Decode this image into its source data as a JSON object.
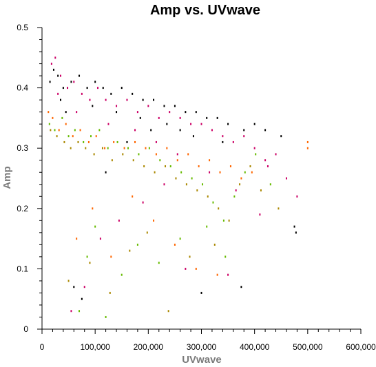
{
  "chart_data": {
    "type": "scatter",
    "title": "Amp vs. UVwave",
    "xlabel": "UVwave",
    "ylabel": "Amp",
    "xlim": [
      0,
      600000
    ],
    "ylim": [
      0,
      0.5
    ],
    "x_ticks": [
      0,
      100000,
      200000,
      300000,
      400000,
      500000,
      600000
    ],
    "x_tick_labels": [
      "0",
      "100,000",
      "200,000",
      "300,000",
      "400,000",
      "500,000",
      "600,000"
    ],
    "y_ticks": [
      0,
      0.1,
      0.2,
      0.3,
      0.4,
      0.5
    ],
    "y_tick_labels": [
      "0",
      "0.1",
      "0.2",
      "0.3",
      "0.4",
      "0.5"
    ],
    "grid": false,
    "marker_colors": [
      "#000000",
      "#cc0066",
      "#ff6600",
      "#66bb00",
      "#aa8800"
    ],
    "series": [
      {
        "color": "#000000",
        "points": [
          [
            15000,
            0.41
          ],
          [
            22000,
            0.43
          ],
          [
            30000,
            0.42
          ],
          [
            40000,
            0.4
          ],
          [
            55000,
            0.41
          ],
          [
            70000,
            0.42
          ],
          [
            85000,
            0.4
          ],
          [
            100000,
            0.41
          ],
          [
            115000,
            0.4
          ],
          [
            130000,
            0.39
          ],
          [
            150000,
            0.4
          ],
          [
            170000,
            0.39
          ],
          [
            190000,
            0.38
          ],
          [
            210000,
            0.38
          ],
          [
            230000,
            0.37
          ],
          [
            250000,
            0.37
          ],
          [
            270000,
            0.36
          ],
          [
            290000,
            0.36
          ],
          [
            310000,
            0.35
          ],
          [
            330000,
            0.35
          ],
          [
            350000,
            0.34
          ],
          [
            380000,
            0.33
          ],
          [
            400000,
            0.34
          ],
          [
            420000,
            0.33
          ],
          [
            450000,
            0.32
          ],
          [
            475000,
            0.17
          ],
          [
            478000,
            0.16
          ],
          [
            60000,
            0.07
          ],
          [
            75000,
            0.05
          ],
          [
            120000,
            0.26
          ],
          [
            160000,
            0.31
          ],
          [
            205000,
            0.33
          ],
          [
            260000,
            0.33
          ],
          [
            300000,
            0.06
          ],
          [
            375000,
            0.07
          ],
          [
            35000,
            0.38
          ],
          [
            45000,
            0.36
          ],
          [
            95000,
            0.37
          ],
          [
            140000,
            0.36
          ],
          [
            185000,
            0.35
          ],
          [
            235000,
            0.34
          ],
          [
            285000,
            0.32
          ],
          [
            340000,
            0.31
          ]
        ]
      },
      {
        "color": "#cc0066",
        "points": [
          [
            18000,
            0.44
          ],
          [
            25000,
            0.45
          ],
          [
            35000,
            0.42
          ],
          [
            48000,
            0.4
          ],
          [
            60000,
            0.41
          ],
          [
            75000,
            0.39
          ],
          [
            90000,
            0.38
          ],
          [
            105000,
            0.4
          ],
          [
            120000,
            0.38
          ],
          [
            140000,
            0.37
          ],
          [
            160000,
            0.38
          ],
          [
            180000,
            0.36
          ],
          [
            200000,
            0.37
          ],
          [
            220000,
            0.35
          ],
          [
            240000,
            0.36
          ],
          [
            260000,
            0.35
          ],
          [
            280000,
            0.34
          ],
          [
            300000,
            0.34
          ],
          [
            320000,
            0.33
          ],
          [
            340000,
            0.32
          ],
          [
            360000,
            0.31
          ],
          [
            380000,
            0.32
          ],
          [
            400000,
            0.3
          ],
          [
            420000,
            0.28
          ],
          [
            440000,
            0.29
          ],
          [
            460000,
            0.25
          ],
          [
            480000,
            0.22
          ],
          [
            410000,
            0.19
          ],
          [
            425000,
            0.27
          ],
          [
            55000,
            0.03
          ],
          [
            80000,
            0.07
          ],
          [
            110000,
            0.15
          ],
          [
            145000,
            0.18
          ],
          [
            190000,
            0.21
          ],
          [
            230000,
            0.24
          ],
          [
            270000,
            0.1
          ],
          [
            350000,
            0.09
          ],
          [
            30000,
            0.39
          ],
          [
            65000,
            0.36
          ],
          [
            125000,
            0.34
          ],
          [
            175000,
            0.33
          ],
          [
            215000,
            0.31
          ],
          [
            255000,
            0.29
          ],
          [
            315000,
            0.26
          ],
          [
            365000,
            0.23
          ]
        ]
      },
      {
        "color": "#ff6600",
        "points": [
          [
            12000,
            0.36
          ],
          [
            20000,
            0.35
          ],
          [
            32000,
            0.33
          ],
          [
            45000,
            0.34
          ],
          [
            58000,
            0.32
          ],
          [
            72000,
            0.33
          ],
          [
            88000,
            0.31
          ],
          [
            102000,
            0.32
          ],
          [
            118000,
            0.3
          ],
          [
            135000,
            0.31
          ],
          [
            155000,
            0.3
          ],
          [
            175000,
            0.31
          ],
          [
            195000,
            0.3
          ],
          [
            215000,
            0.29
          ],
          [
            235000,
            0.3
          ],
          [
            255000,
            0.28
          ],
          [
            275000,
            0.29
          ],
          [
            295000,
            0.27
          ],
          [
            315000,
            0.28
          ],
          [
            335000,
            0.26
          ],
          [
            355000,
            0.27
          ],
          [
            375000,
            0.25
          ],
          [
            395000,
            0.26
          ],
          [
            500000,
            0.31
          ],
          [
            500000,
            0.3
          ],
          [
            65000,
            0.15
          ],
          [
            95000,
            0.2
          ],
          [
            130000,
            0.12
          ],
          [
            170000,
            0.22
          ],
          [
            210000,
            0.18
          ],
          [
            250000,
            0.14
          ],
          [
            290000,
            0.1
          ],
          [
            330000,
            0.09
          ]
        ]
      },
      {
        "color": "#66bb00",
        "points": [
          [
            14000,
            0.34
          ],
          [
            24000,
            0.33
          ],
          [
            38000,
            0.35
          ],
          [
            50000,
            0.32
          ],
          [
            62000,
            0.33
          ],
          [
            78000,
            0.31
          ],
          [
            92000,
            0.32
          ],
          [
            108000,
            0.33
          ],
          [
            124000,
            0.3
          ],
          [
            142000,
            0.31
          ],
          [
            162000,
            0.3
          ],
          [
            182000,
            0.29
          ],
          [
            202000,
            0.3
          ],
          [
            222000,
            0.28
          ],
          [
            242000,
            0.27
          ],
          [
            262000,
            0.26
          ],
          [
            282000,
            0.25
          ],
          [
            302000,
            0.24
          ],
          [
            322000,
            0.21
          ],
          [
            342000,
            0.18
          ],
          [
            362000,
            0.22
          ],
          [
            382000,
            0.26
          ],
          [
            402000,
            0.29
          ],
          [
            430000,
            0.24
          ],
          [
            70000,
            0.03
          ],
          [
            85000,
            0.12
          ],
          [
            100000,
            0.17
          ],
          [
            120000,
            0.02
          ],
          [
            150000,
            0.09
          ],
          [
            180000,
            0.14
          ],
          [
            220000,
            0.11
          ],
          [
            260000,
            0.15
          ],
          [
            310000,
            0.17
          ],
          [
            345000,
            0.12
          ]
        ]
      },
      {
        "color": "#aa8800",
        "points": [
          [
            16000,
            0.33
          ],
          [
            28000,
            0.32
          ],
          [
            42000,
            0.31
          ],
          [
            54000,
            0.3
          ],
          [
            68000,
            0.31
          ],
          [
            82000,
            0.3
          ],
          [
            98000,
            0.29
          ],
          [
            114000,
            0.3
          ],
          [
            132000,
            0.28
          ],
          [
            152000,
            0.29
          ],
          [
            172000,
            0.28
          ],
          [
            192000,
            0.27
          ],
          [
            212000,
            0.26
          ],
          [
            232000,
            0.27
          ],
          [
            252000,
            0.25
          ],
          [
            272000,
            0.24
          ],
          [
            292000,
            0.23
          ],
          [
            312000,
            0.22
          ],
          [
            332000,
            0.2
          ],
          [
            352000,
            0.18
          ],
          [
            372000,
            0.24
          ],
          [
            392000,
            0.27
          ],
          [
            412000,
            0.23
          ],
          [
            445000,
            0.2
          ],
          [
            50000,
            0.08
          ],
          [
            90000,
            0.11
          ],
          [
            128000,
            0.06
          ],
          [
            165000,
            0.13
          ],
          [
            198000,
            0.16
          ],
          [
            238000,
            0.03
          ],
          [
            278000,
            0.12
          ],
          [
            325000,
            0.14
          ]
        ]
      }
    ]
  }
}
